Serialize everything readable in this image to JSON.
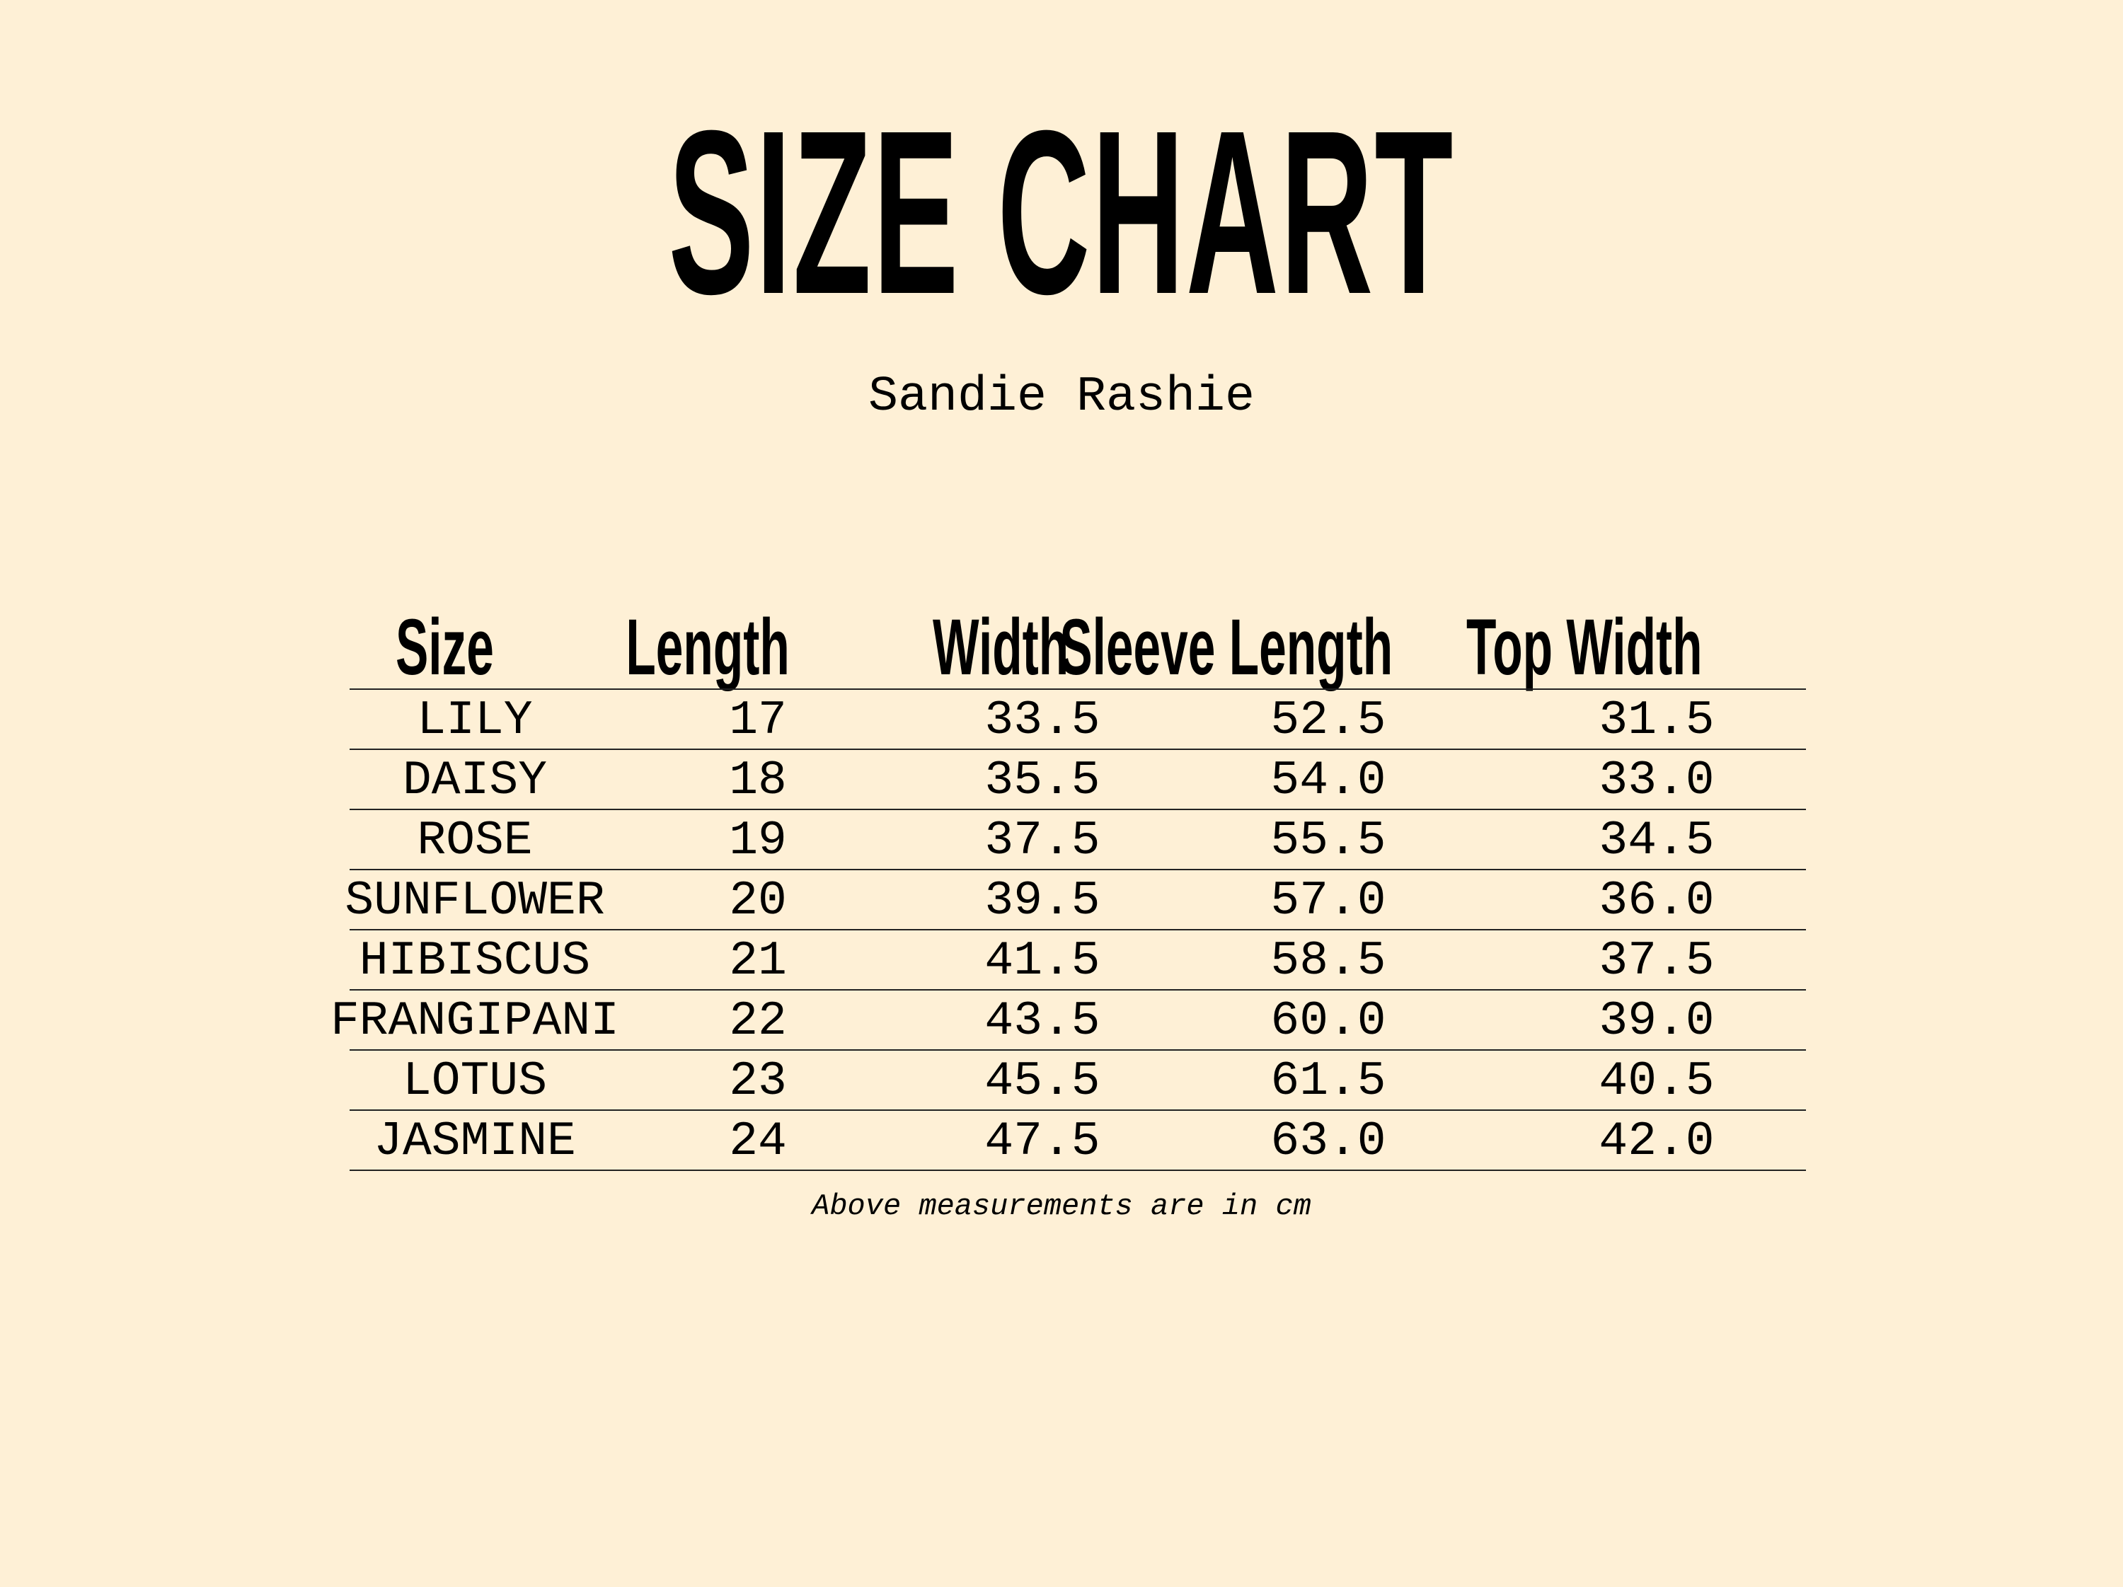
{
  "title": "SIZE CHART",
  "subtitle": "Sandie Rashie",
  "table": {
    "headers": [
      "Size",
      "Length",
      "Width",
      "Sleeve Length",
      "Top Width"
    ],
    "rows": [
      [
        "LILY",
        "17",
        "33.5",
        "52.5",
        "31.5"
      ],
      [
        "DAISY",
        "18",
        "35.5",
        "54.0",
        "33.0"
      ],
      [
        "ROSE",
        "19",
        "37.5",
        "55.5",
        "34.5"
      ],
      [
        "SUNFLOWER",
        "20",
        "39.5",
        "57.0",
        "36.0"
      ],
      [
        "HIBISCUS",
        "21",
        "41.5",
        "58.5",
        "37.5"
      ],
      [
        "FRANGIPANI",
        "22",
        "43.5",
        "60.0",
        "39.0"
      ],
      [
        "LOTUS",
        "23",
        "45.5",
        "61.5",
        "40.5"
      ],
      [
        "JASMINE",
        "24",
        "47.5",
        "63.0",
        "42.0"
      ]
    ]
  },
  "note": "Above measurements are in cm",
  "colors": {
    "background": "#FEF0D6",
    "text": "#000000"
  }
}
